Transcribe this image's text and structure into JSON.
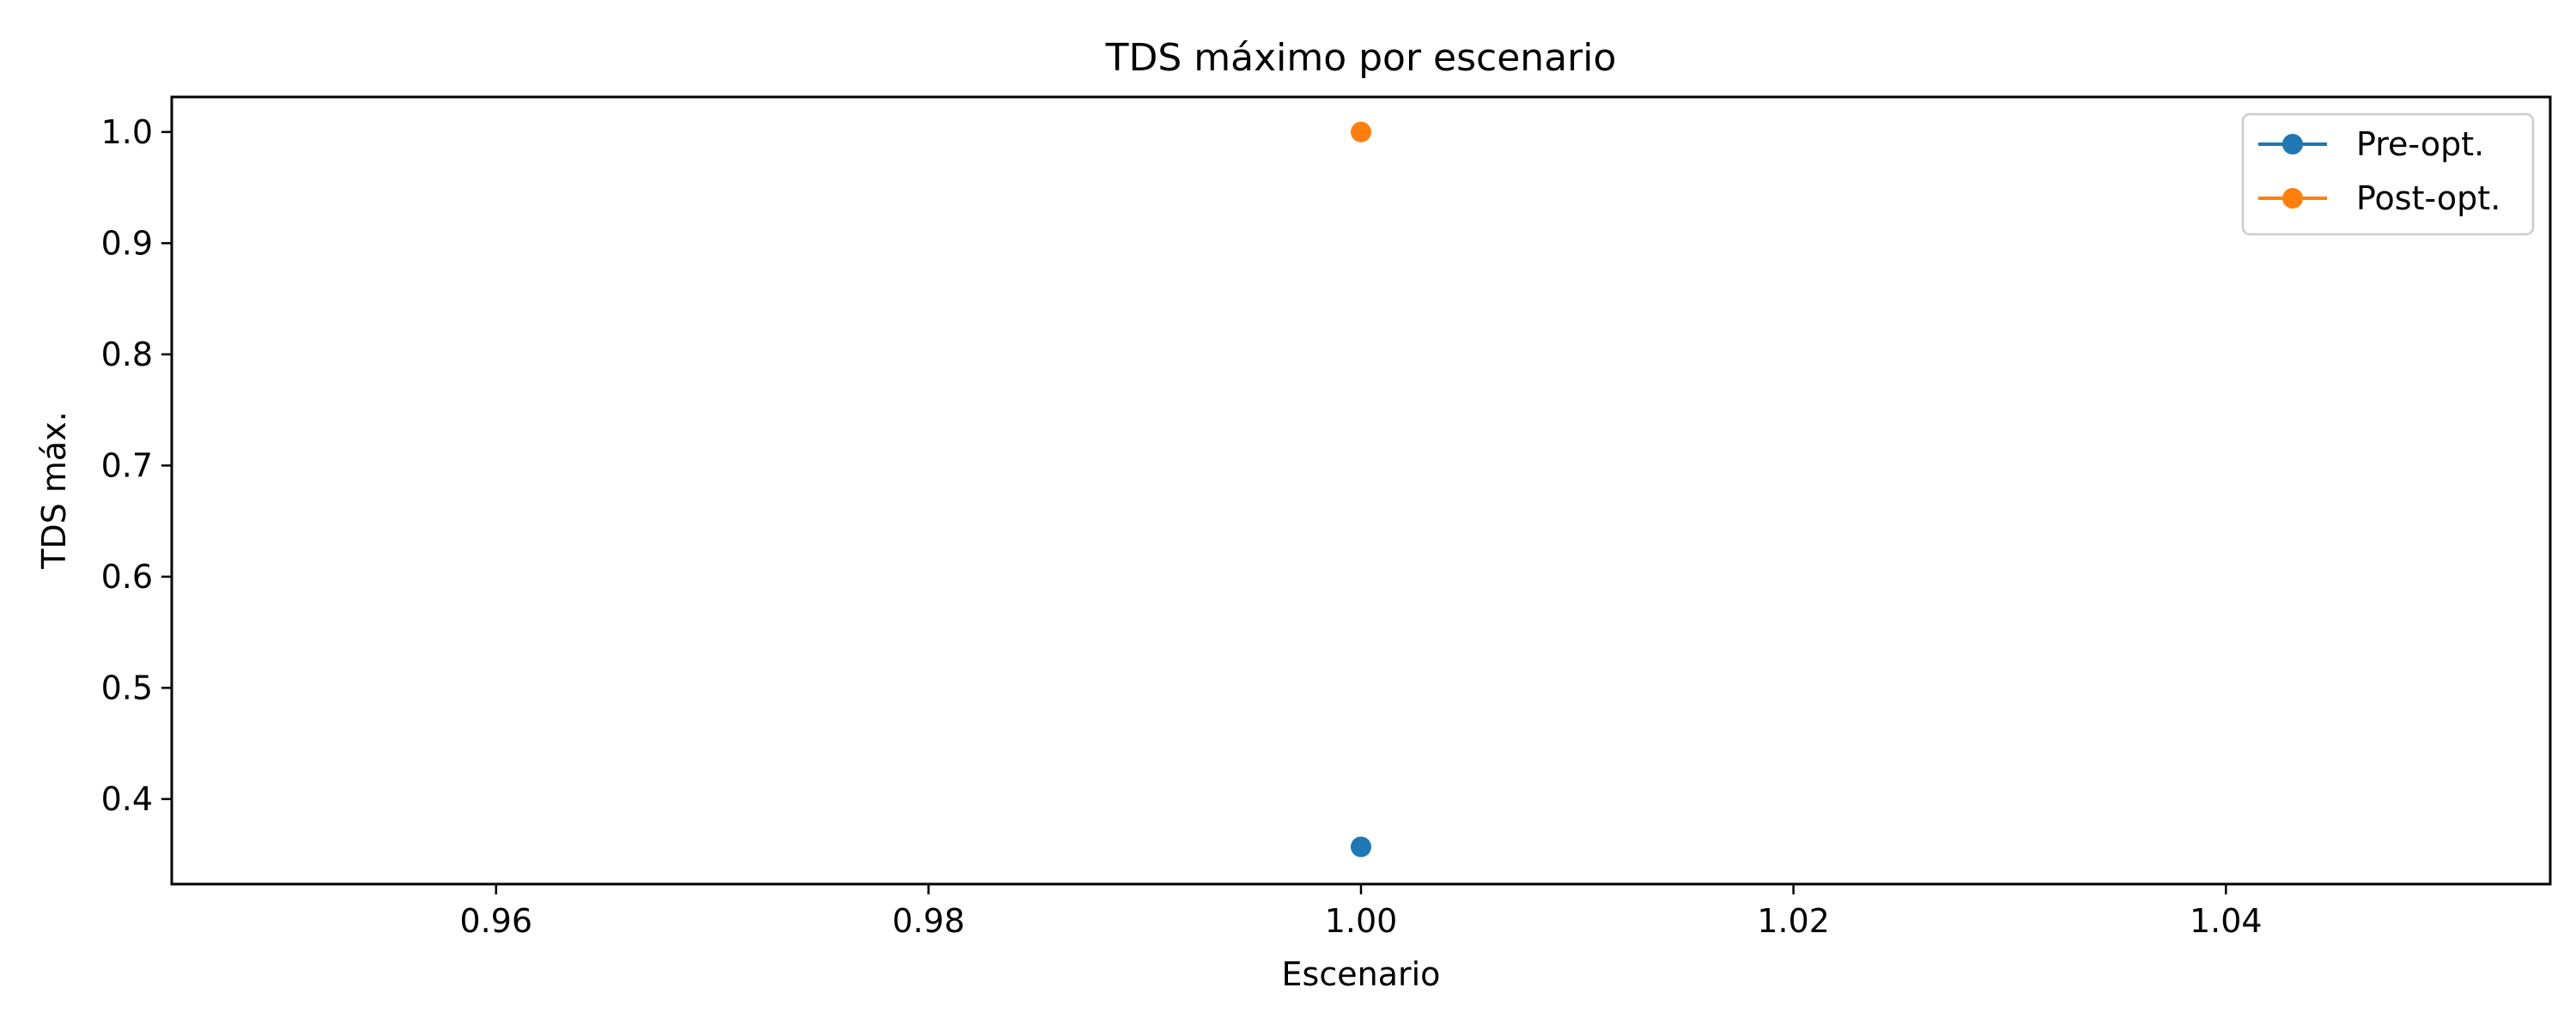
{
  "chart_data": {
    "type": "scatter",
    "title": "TDS máximo por escenario",
    "xlabel": "Escenario",
    "ylabel": "TDS máx.",
    "xlim": [
      0.945,
      1.055
    ],
    "ylim": [
      0.3235,
      1.0315
    ],
    "xticks": [
      "0.96",
      "0.98",
      "1.00",
      "1.02",
      "1.04"
    ],
    "yticks": [
      "0.4",
      "0.5",
      "0.6",
      "0.7",
      "0.8",
      "0.9",
      "1.0"
    ],
    "grid": false,
    "legend_position": "top-right",
    "series": [
      {
        "name": "Pre-opt.",
        "color": "#1f77b4",
        "x": [
          1.0
        ],
        "y": [
          0.357
        ]
      },
      {
        "name": "Post-opt.",
        "color": "#ff7f0e",
        "x": [
          1.0
        ],
        "y": [
          1.0
        ]
      }
    ]
  }
}
